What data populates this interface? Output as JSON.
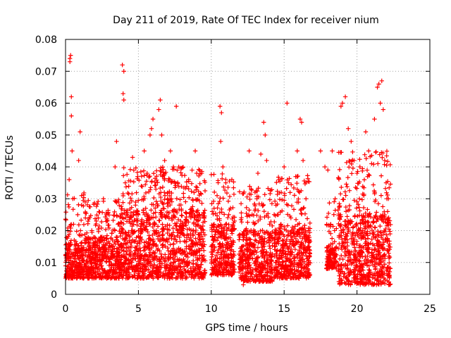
{
  "chart_data": {
    "type": "scatter",
    "title": "Day 211 of 2019, Rate Of TEC Index for receiver nium",
    "xlabel": "GPS time / hours",
    "ylabel": "ROTI / TECUs",
    "xlim": [
      0,
      25
    ],
    "ylim": [
      0,
      0.08
    ],
    "x_ticks": [
      0,
      5,
      10,
      15,
      20,
      25
    ],
    "x_tick_labels": [
      "0",
      "5",
      "10",
      "15",
      "20",
      "25"
    ],
    "y_ticks": [
      0,
      0.01,
      0.02,
      0.03,
      0.04,
      0.05,
      0.06,
      0.07,
      0.08
    ],
    "y_tick_labels": [
      "0",
      "0.01",
      "0.02",
      "0.03",
      "0.04",
      "0.05",
      "0.06",
      "0.07",
      "0.08"
    ],
    "grid": true,
    "marker": "plus",
    "color": "#ff0000",
    "series": [
      {
        "name": "",
        "points": [
          [
            0.05,
            0.012
          ],
          [
            0.1,
            0.008
          ],
          [
            0.15,
            0.02
          ],
          [
            0.2,
            0.015
          ],
          [
            0.25,
            0.036
          ],
          [
            0.3,
            0.073
          ],
          [
            0.3,
            0.074
          ],
          [
            0.35,
            0.075
          ],
          [
            0.4,
            0.062
          ],
          [
            0.4,
            0.056
          ],
          [
            0.45,
            0.045
          ],
          [
            0.5,
            0.03
          ],
          [
            0.55,
            0.022
          ],
          [
            0.6,
            0.017
          ],
          [
            0.7,
            0.013
          ],
          [
            0.8,
            0.009
          ],
          [
            0.9,
            0.042
          ],
          [
            1.0,
            0.051
          ],
          [
            1.1,
            0.028
          ],
          [
            1.2,
            0.012
          ],
          [
            1.4,
            0.007
          ],
          [
            1.6,
            0.015
          ],
          [
            1.8,
            0.02
          ],
          [
            2.0,
            0.014
          ],
          [
            2.2,
            0.011
          ],
          [
            2.4,
            0.018
          ],
          [
            2.6,
            0.03
          ],
          [
            2.8,
            0.025
          ],
          [
            3.0,
            0.016
          ],
          [
            3.2,
            0.012
          ],
          [
            3.4,
            0.04
          ],
          [
            3.5,
            0.048
          ],
          [
            3.6,
            0.022
          ],
          [
            3.8,
            0.015
          ],
          [
            3.9,
            0.072
          ],
          [
            4.0,
            0.07
          ],
          [
            3.95,
            0.063
          ],
          [
            4.0,
            0.061
          ],
          [
            4.1,
            0.035
          ],
          [
            4.2,
            0.025
          ],
          [
            4.4,
            0.018
          ],
          [
            4.6,
            0.043
          ],
          [
            4.8,
            0.028
          ],
          [
            5.0,
            0.02
          ],
          [
            5.2,
            0.034
          ],
          [
            5.4,
            0.045
          ],
          [
            5.6,
            0.038
          ],
          [
            5.8,
            0.05
          ],
          [
            5.9,
            0.052
          ],
          [
            6.0,
            0.055
          ],
          [
            6.2,
            0.033
          ],
          [
            6.4,
            0.058
          ],
          [
            6.5,
            0.061
          ],
          [
            6.6,
            0.05
          ],
          [
            6.8,
            0.042
          ],
          [
            7.0,
            0.03
          ],
          [
            7.2,
            0.045
          ],
          [
            7.4,
            0.04
          ],
          [
            7.6,
            0.059
          ],
          [
            7.8,
            0.028
          ],
          [
            8.0,
            0.02
          ],
          [
            8.3,
            0.015
          ],
          [
            8.6,
            0.024
          ],
          [
            8.9,
            0.045
          ],
          [
            9.0,
            0.038
          ],
          [
            9.2,
            0.025
          ],
          [
            9.5,
            0.012
          ],
          [
            10.0,
            0.015
          ],
          [
            10.2,
            0.022
          ],
          [
            10.4,
            0.031
          ],
          [
            10.6,
            0.059
          ],
          [
            10.7,
            0.057
          ],
          [
            10.65,
            0.048
          ],
          [
            10.8,
            0.04
          ],
          [
            11.0,
            0.035
          ],
          [
            11.2,
            0.025
          ],
          [
            11.4,
            0.014
          ],
          [
            12.0,
            0.01
          ],
          [
            12.2,
            0.003
          ],
          [
            12.4,
            0.02
          ],
          [
            12.6,
            0.045
          ],
          [
            12.8,
            0.025
          ],
          [
            13.0,
            0.032
          ],
          [
            13.2,
            0.038
          ],
          [
            13.4,
            0.044
          ],
          [
            13.6,
            0.054
          ],
          [
            13.7,
            0.05
          ],
          [
            13.8,
            0.042
          ],
          [
            14.0,
            0.022
          ],
          [
            14.4,
            0.015
          ],
          [
            14.6,
            0.025
          ],
          [
            14.8,
            0.032
          ],
          [
            15.0,
            0.04
          ],
          [
            15.2,
            0.06
          ],
          [
            15.3,
            0.035
          ],
          [
            15.5,
            0.02
          ],
          [
            15.7,
            0.012
          ],
          [
            15.9,
            0.045
          ],
          [
            16.1,
            0.055
          ],
          [
            16.2,
            0.054
          ],
          [
            16.3,
            0.042
          ],
          [
            16.5,
            0.03
          ],
          [
            16.7,
            0.01
          ],
          [
            17.5,
            0.045
          ],
          [
            17.8,
            0.04
          ],
          [
            18.0,
            0.039
          ],
          [
            18.2,
            0.022
          ],
          [
            18.3,
            0.045
          ],
          [
            18.5,
            0.03
          ],
          [
            18.9,
            0.059
          ],
          [
            19.0,
            0.06
          ],
          [
            19.2,
            0.062
          ],
          [
            19.4,
            0.052
          ],
          [
            19.6,
            0.048
          ],
          [
            19.8,
            0.042
          ],
          [
            20.0,
            0.038
          ],
          [
            20.2,
            0.04
          ],
          [
            20.4,
            0.02
          ],
          [
            20.6,
            0.051
          ],
          [
            20.8,
            0.045
          ],
          [
            21.0,
            0.041
          ],
          [
            21.2,
            0.055
          ],
          [
            21.4,
            0.065
          ],
          [
            21.5,
            0.066
          ],
          [
            21.6,
            0.06
          ],
          [
            21.7,
            0.067
          ],
          [
            21.8,
            0.058
          ],
          [
            21.9,
            0.042
          ],
          [
            22.0,
            0.035
          ],
          [
            22.1,
            0.026
          ],
          [
            22.2,
            0.012
          ]
        ]
      }
    ],
    "density_envelope": {
      "segments": [
        {
          "x_start": 0.0,
          "x_end": 1.3,
          "y_low": 0.005,
          "y_high": 0.032,
          "dense_high": 0.016
        },
        {
          "x_start": 1.3,
          "x_end": 3.7,
          "y_low": 0.005,
          "y_high": 0.03,
          "dense_high": 0.018
        },
        {
          "x_start": 3.7,
          "x_end": 9.6,
          "y_low": 0.005,
          "y_high": 0.04,
          "dense_high": 0.027
        },
        {
          "x_start": 10.0,
          "x_end": 11.6,
          "y_low": 0.006,
          "y_high": 0.038,
          "dense_high": 0.022
        },
        {
          "x_start": 11.9,
          "x_end": 14.2,
          "y_low": 0.004,
          "y_high": 0.034,
          "dense_high": 0.02
        },
        {
          "x_start": 14.3,
          "x_end": 16.8,
          "y_low": 0.005,
          "y_high": 0.038,
          "dense_high": 0.021
        },
        {
          "x_start": 17.9,
          "x_end": 18.6,
          "y_low": 0.008,
          "y_high": 0.03,
          "dense_high": 0.015
        },
        {
          "x_start": 18.7,
          "x_end": 22.3,
          "y_low": 0.003,
          "y_high": 0.045,
          "dense_high": 0.025
        }
      ]
    }
  }
}
